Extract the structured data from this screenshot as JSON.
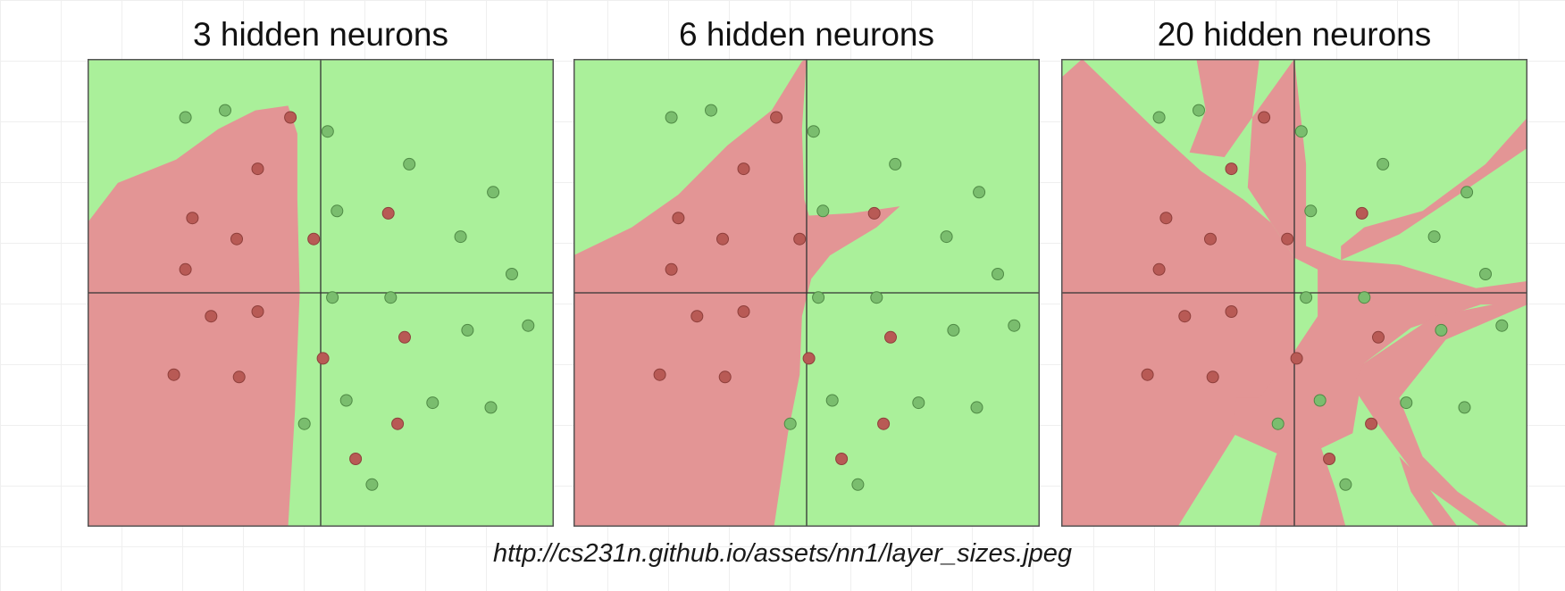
{
  "colors": {
    "class_red_region": "#e39595",
    "class_green_region": "#aaf09a",
    "red_point": "#b85a55",
    "green_point": "#7abd6e",
    "axis": "#333333"
  },
  "caption": "http://cs231n.github.io/assets/nn1/layer_sizes.jpeg",
  "chart_data": [
    {
      "type": "scatter",
      "title": "3 hidden neurons",
      "xlim": [
        -1,
        1
      ],
      "ylim": [
        -1,
        1
      ],
      "axes_lines_at_zero": true,
      "red_regions": [
        [
          [
            -1,
            0.3
          ],
          [
            -0.87,
            0.47
          ],
          [
            -0.62,
            0.57
          ],
          [
            -0.44,
            0.7
          ],
          [
            -0.28,
            0.78
          ],
          [
            -0.14,
            0.8
          ],
          [
            -0.1,
            0.68
          ],
          [
            -0.1,
            0.4
          ],
          [
            -0.09,
            0.0
          ],
          [
            -0.11,
            -0.5
          ],
          [
            -0.14,
            -1
          ],
          [
            -1,
            -1
          ]
        ]
      ],
      "points": [
        {
          "x": -0.58,
          "y": 0.75,
          "c": "g"
        },
        {
          "x": -0.41,
          "y": 0.78,
          "c": "g"
        },
        {
          "x": -0.13,
          "y": 0.75,
          "c": "r"
        },
        {
          "x": 0.03,
          "y": 0.69,
          "c": "g"
        },
        {
          "x": -0.27,
          "y": 0.53,
          "c": "r"
        },
        {
          "x": 0.38,
          "y": 0.55,
          "c": "g"
        },
        {
          "x": 0.74,
          "y": 0.43,
          "c": "g"
        },
        {
          "x": -0.55,
          "y": 0.32,
          "c": "r"
        },
        {
          "x": 0.07,
          "y": 0.35,
          "c": "g"
        },
        {
          "x": 0.29,
          "y": 0.34,
          "c": "r"
        },
        {
          "x": -0.36,
          "y": 0.23,
          "c": "r"
        },
        {
          "x": -0.03,
          "y": 0.23,
          "c": "r"
        },
        {
          "x": 0.6,
          "y": 0.24,
          "c": "g"
        },
        {
          "x": -0.58,
          "y": 0.1,
          "c": "r"
        },
        {
          "x": 0.82,
          "y": 0.08,
          "c": "g"
        },
        {
          "x": 0.05,
          "y": -0.02,
          "c": "g"
        },
        {
          "x": 0.3,
          "y": -0.02,
          "c": "g"
        },
        {
          "x": -0.47,
          "y": -0.1,
          "c": "r"
        },
        {
          "x": -0.27,
          "y": -0.08,
          "c": "r"
        },
        {
          "x": 0.63,
          "y": -0.16,
          "c": "g"
        },
        {
          "x": 0.89,
          "y": -0.14,
          "c": "g"
        },
        {
          "x": 0.36,
          "y": -0.19,
          "c": "r"
        },
        {
          "x": 0.01,
          "y": -0.28,
          "c": "r"
        },
        {
          "x": -0.63,
          "y": -0.35,
          "c": "r"
        },
        {
          "x": -0.35,
          "y": -0.36,
          "c": "r"
        },
        {
          "x": 0.11,
          "y": -0.46,
          "c": "g"
        },
        {
          "x": 0.48,
          "y": -0.47,
          "c": "g"
        },
        {
          "x": 0.73,
          "y": -0.49,
          "c": "g"
        },
        {
          "x": -0.07,
          "y": -0.56,
          "c": "g"
        },
        {
          "x": 0.33,
          "y": -0.56,
          "c": "r"
        },
        {
          "x": 0.15,
          "y": -0.71,
          "c": "r"
        },
        {
          "x": 0.22,
          "y": -0.82,
          "c": "g"
        }
      ]
    },
    {
      "type": "scatter",
      "title": "6 hidden neurons",
      "xlim": [
        -1,
        1
      ],
      "ylim": [
        -1,
        1
      ],
      "axes_lines_at_zero": true,
      "red_regions": [
        [
          [
            -1,
            0.16
          ],
          [
            -0.75,
            0.28
          ],
          [
            -0.55,
            0.42
          ],
          [
            -0.34,
            0.63
          ],
          [
            -0.15,
            0.78
          ],
          [
            -0.02,
            0.99
          ],
          [
            0.0,
            1
          ],
          [
            -0.02,
            0.7
          ],
          [
            -0.01,
            0.4
          ],
          [
            0.01,
            0.33
          ],
          [
            0.19,
            0.34
          ],
          [
            0.4,
            0.37
          ],
          [
            0.3,
            0.28
          ],
          [
            0.1,
            0.16
          ],
          [
            0.02,
            0.06
          ],
          [
            -0.02,
            -0.1
          ],
          [
            -0.03,
            -0.35
          ],
          [
            -0.08,
            -0.6
          ],
          [
            -0.14,
            -1
          ],
          [
            -1,
            -1
          ]
        ]
      ],
      "points": [
        {
          "x": -0.58,
          "y": 0.75,
          "c": "g"
        },
        {
          "x": -0.41,
          "y": 0.78,
          "c": "g"
        },
        {
          "x": -0.13,
          "y": 0.75,
          "c": "r"
        },
        {
          "x": 0.03,
          "y": 0.69,
          "c": "g"
        },
        {
          "x": -0.27,
          "y": 0.53,
          "c": "r"
        },
        {
          "x": 0.38,
          "y": 0.55,
          "c": "g"
        },
        {
          "x": 0.74,
          "y": 0.43,
          "c": "g"
        },
        {
          "x": -0.55,
          "y": 0.32,
          "c": "r"
        },
        {
          "x": 0.07,
          "y": 0.35,
          "c": "g"
        },
        {
          "x": 0.29,
          "y": 0.34,
          "c": "r"
        },
        {
          "x": -0.36,
          "y": 0.23,
          "c": "r"
        },
        {
          "x": -0.03,
          "y": 0.23,
          "c": "r"
        },
        {
          "x": 0.6,
          "y": 0.24,
          "c": "g"
        },
        {
          "x": -0.58,
          "y": 0.1,
          "c": "r"
        },
        {
          "x": 0.82,
          "y": 0.08,
          "c": "g"
        },
        {
          "x": 0.05,
          "y": -0.02,
          "c": "g"
        },
        {
          "x": 0.3,
          "y": -0.02,
          "c": "g"
        },
        {
          "x": -0.47,
          "y": -0.1,
          "c": "r"
        },
        {
          "x": -0.27,
          "y": -0.08,
          "c": "r"
        },
        {
          "x": 0.63,
          "y": -0.16,
          "c": "g"
        },
        {
          "x": 0.89,
          "y": -0.14,
          "c": "g"
        },
        {
          "x": 0.36,
          "y": -0.19,
          "c": "r"
        },
        {
          "x": 0.01,
          "y": -0.28,
          "c": "r"
        },
        {
          "x": -0.63,
          "y": -0.35,
          "c": "r"
        },
        {
          "x": -0.35,
          "y": -0.36,
          "c": "r"
        },
        {
          "x": 0.11,
          "y": -0.46,
          "c": "g"
        },
        {
          "x": 0.48,
          "y": -0.47,
          "c": "g"
        },
        {
          "x": 0.73,
          "y": -0.49,
          "c": "g"
        },
        {
          "x": -0.07,
          "y": -0.56,
          "c": "g"
        },
        {
          "x": 0.33,
          "y": -0.56,
          "c": "r"
        },
        {
          "x": 0.15,
          "y": -0.71,
          "c": "r"
        },
        {
          "x": 0.22,
          "y": -0.82,
          "c": "g"
        }
      ]
    },
    {
      "type": "scatter",
      "title": "20 hidden neurons",
      "xlim": [
        -1,
        1
      ],
      "ylim": [
        -1,
        1
      ],
      "axes_lines_at_zero": true,
      "red_regions": [
        [
          [
            -1,
            0.92
          ],
          [
            -0.91,
            1
          ],
          [
            -0.62,
            0.72
          ],
          [
            -0.4,
            0.52
          ],
          [
            -0.22,
            0.4
          ],
          [
            -0.1,
            0.3
          ],
          [
            0.0,
            0.15
          ],
          [
            0.0,
            -0.25
          ],
          [
            -0.12,
            -0.45
          ],
          [
            -0.25,
            -0.6
          ],
          [
            -0.5,
            -1
          ],
          [
            -1,
            -1
          ]
        ],
        [
          [
            -0.42,
            1
          ],
          [
            -0.15,
            1
          ],
          [
            -0.18,
            0.75
          ],
          [
            -0.3,
            0.58
          ],
          [
            -0.45,
            0.6
          ],
          [
            -0.38,
            0.78
          ]
        ],
        [
          [
            0.0,
            1
          ],
          [
            -0.18,
            0.75
          ],
          [
            -0.2,
            0.45
          ],
          [
            -0.1,
            0.3
          ],
          [
            0.0,
            0.15
          ],
          [
            0.1,
            0.1
          ],
          [
            0.1,
            -0.1
          ],
          [
            0.0,
            -0.25
          ],
          [
            -0.15,
            -0.45
          ],
          [
            -0.25,
            -0.45
          ],
          [
            -0.27,
            -0.6
          ],
          [
            0.0,
            -0.72
          ],
          [
            0.25,
            -0.6
          ],
          [
            0.3,
            -0.3
          ],
          [
            0.5,
            -0.15
          ],
          [
            0.8,
            -0.05
          ],
          [
            1,
            -0.05
          ],
          [
            1,
            0.05
          ],
          [
            0.78,
            0.02
          ],
          [
            0.45,
            0.12
          ],
          [
            0.2,
            0.14
          ],
          [
            0.05,
            0.2
          ],
          [
            0.05,
            0.55
          ],
          [
            0.0,
            1
          ]
        ],
        [
          [
            0.2,
            0.14
          ],
          [
            0.45,
            0.25
          ],
          [
            0.75,
            0.45
          ],
          [
            1,
            0.62
          ],
          [
            1,
            0.75
          ],
          [
            0.82,
            0.55
          ],
          [
            0.55,
            0.35
          ],
          [
            0.3,
            0.28
          ],
          [
            0.2,
            0.2
          ]
        ],
        [
          [
            -0.15,
            -1
          ],
          [
            -0.08,
            -0.7
          ],
          [
            0.0,
            -0.52
          ],
          [
            0.1,
            -0.62
          ],
          [
            0.18,
            -0.85
          ],
          [
            0.22,
            -1
          ]
        ],
        [
          [
            0.3,
            -0.3
          ],
          [
            0.45,
            -0.2
          ],
          [
            0.6,
            -0.1
          ],
          [
            1,
            -0.02
          ],
          [
            1,
            -0.05
          ],
          [
            0.65,
            -0.2
          ],
          [
            0.45,
            -0.45
          ],
          [
            0.55,
            -0.7
          ],
          [
            0.7,
            -0.85
          ],
          [
            0.92,
            -1
          ],
          [
            0.8,
            -1
          ],
          [
            0.55,
            -0.82
          ],
          [
            0.35,
            -0.55
          ],
          [
            0.25,
            -0.4
          ]
        ],
        [
          [
            0.6,
            -1
          ],
          [
            0.5,
            -0.85
          ],
          [
            0.45,
            -0.7
          ],
          [
            0.55,
            -0.8
          ],
          [
            0.7,
            -1
          ]
        ]
      ],
      "points": [
        {
          "x": -0.58,
          "y": 0.75,
          "c": "g"
        },
        {
          "x": -0.41,
          "y": 0.78,
          "c": "g"
        },
        {
          "x": -0.13,
          "y": 0.75,
          "c": "r"
        },
        {
          "x": 0.03,
          "y": 0.69,
          "c": "g"
        },
        {
          "x": -0.27,
          "y": 0.53,
          "c": "r"
        },
        {
          "x": 0.38,
          "y": 0.55,
          "c": "g"
        },
        {
          "x": 0.74,
          "y": 0.43,
          "c": "g"
        },
        {
          "x": -0.55,
          "y": 0.32,
          "c": "r"
        },
        {
          "x": 0.07,
          "y": 0.35,
          "c": "g"
        },
        {
          "x": 0.29,
          "y": 0.34,
          "c": "r"
        },
        {
          "x": -0.36,
          "y": 0.23,
          "c": "r"
        },
        {
          "x": -0.03,
          "y": 0.23,
          "c": "r"
        },
        {
          "x": 0.6,
          "y": 0.24,
          "c": "g"
        },
        {
          "x": -0.58,
          "y": 0.1,
          "c": "r"
        },
        {
          "x": 0.82,
          "y": 0.08,
          "c": "g"
        },
        {
          "x": 0.05,
          "y": -0.02,
          "c": "g"
        },
        {
          "x": 0.3,
          "y": -0.02,
          "c": "g"
        },
        {
          "x": -0.47,
          "y": -0.1,
          "c": "r"
        },
        {
          "x": -0.27,
          "y": -0.08,
          "c": "r"
        },
        {
          "x": 0.63,
          "y": -0.16,
          "c": "g"
        },
        {
          "x": 0.89,
          "y": -0.14,
          "c": "g"
        },
        {
          "x": 0.36,
          "y": -0.19,
          "c": "r"
        },
        {
          "x": 0.01,
          "y": -0.28,
          "c": "r"
        },
        {
          "x": -0.63,
          "y": -0.35,
          "c": "r"
        },
        {
          "x": -0.35,
          "y": -0.36,
          "c": "r"
        },
        {
          "x": 0.11,
          "y": -0.46,
          "c": "g"
        },
        {
          "x": 0.48,
          "y": -0.47,
          "c": "g"
        },
        {
          "x": 0.73,
          "y": -0.49,
          "c": "g"
        },
        {
          "x": -0.07,
          "y": -0.56,
          "c": "g"
        },
        {
          "x": 0.33,
          "y": -0.56,
          "c": "r"
        },
        {
          "x": 0.15,
          "y": -0.71,
          "c": "r"
        },
        {
          "x": 0.22,
          "y": -0.82,
          "c": "g"
        }
      ]
    }
  ]
}
